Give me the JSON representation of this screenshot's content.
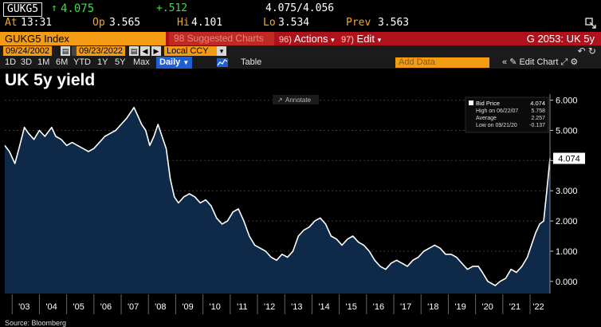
{
  "quote": {
    "ticker": "GUKG5",
    "last_price": "4.075",
    "change": "+.512",
    "bid_ask": "4.075/4.056",
    "at_label": "At",
    "at_value": "13:31",
    "open_label": "Op",
    "open_value": "3.565",
    "high_label": "Hi",
    "high_value": "4.101",
    "low_label": "Lo",
    "low_value": "3.534",
    "prev_label": "Prev",
    "prev_value": "3.563"
  },
  "command_bar": {
    "security": "GUKG5 Index",
    "suggested": "98 Suggested Charts",
    "actions_num": "96)",
    "actions_label": "Actions",
    "edit_num": "97)",
    "edit_label": "Edit",
    "right_title": "G 2053: UK 5y"
  },
  "date_bar": {
    "start_date": "09/24/2002",
    "end_date": "09/23/2022",
    "currency": "Local CCY"
  },
  "tabs": {
    "items": [
      "1D",
      "3D",
      "1M",
      "6M",
      "YTD",
      "1Y",
      "5Y",
      "Max"
    ],
    "frequency": "Daily",
    "table_label": "Table",
    "add_data_placeholder": "Add Data",
    "edit_chart_label": "Edit Chart"
  },
  "page_title": "UK 5y yield",
  "source": "Source: Bloomberg",
  "chart_data": {
    "type": "area",
    "title": "UK 5y yield",
    "annotate_label": "Annotate",
    "current_value_label": "4.074",
    "legend": {
      "series_name": "Bid Price",
      "series_value": "4.074",
      "high_label": "High on 06/22/07",
      "high_value": "5.758",
      "average_label": "Average",
      "average_value": "2.257",
      "low_label": "Low on 09/21/20",
      "low_value": "-0.137"
    },
    "ylim": [
      -0.4,
      6.2
    ],
    "yticks": [
      "6.000",
      "5.000",
      "4.000",
      "3.000",
      "2.000",
      "1.000",
      "0.000"
    ],
    "ytick_values": [
      6,
      5,
      4,
      3,
      2,
      1,
      0
    ],
    "xlim": [
      2002.73,
      2022.73
    ],
    "xticks": [
      "'03",
      "'04",
      "'05",
      "'06",
      "'07",
      "'08",
      "'09",
      "'10",
      "'11",
      "'12",
      "'13",
      "'14",
      "'15",
      "'16",
      "'17",
      "'18",
      "'19",
      "'20",
      "'21",
      "'22"
    ],
    "xtick_values": [
      2003,
      2004,
      2005,
      2006,
      2007,
      2008,
      2009,
      2010,
      2011,
      2012,
      2013,
      2014,
      2015,
      2016,
      2017,
      2018,
      2019,
      2020,
      2021,
      2022
    ],
    "series": [
      {
        "name": "Bid Price",
        "color": "#ffffff",
        "fill": "#0e2a48",
        "x": [
          2002.73,
          2002.9,
          2003.1,
          2003.25,
          2003.45,
          2003.6,
          2003.8,
          2004.0,
          2004.2,
          2004.45,
          2004.6,
          2004.8,
          2005.0,
          2005.2,
          2005.4,
          2005.6,
          2005.8,
          2006.0,
          2006.2,
          2006.4,
          2006.6,
          2006.8,
          2007.0,
          2007.2,
          2007.47,
          2007.6,
          2007.75,
          2007.9,
          2008.05,
          2008.2,
          2008.35,
          2008.5,
          2008.65,
          2008.8,
          2008.95,
          2009.1,
          2009.3,
          2009.5,
          2009.7,
          2009.9,
          2010.1,
          2010.3,
          2010.5,
          2010.7,
          2010.9,
          2011.1,
          2011.3,
          2011.5,
          2011.7,
          2011.9,
          2012.1,
          2012.3,
          2012.5,
          2012.7,
          2012.9,
          2013.1,
          2013.3,
          2013.5,
          2013.7,
          2013.9,
          2014.1,
          2014.3,
          2014.5,
          2014.7,
          2014.9,
          2015.1,
          2015.3,
          2015.5,
          2015.7,
          2015.9,
          2016.1,
          2016.3,
          2016.5,
          2016.7,
          2016.9,
          2017.1,
          2017.3,
          2017.5,
          2017.7,
          2017.9,
          2018.1,
          2018.3,
          2018.5,
          2018.7,
          2018.9,
          2019.1,
          2019.3,
          2019.5,
          2019.7,
          2019.9,
          2020.1,
          2020.25,
          2020.45,
          2020.72,
          2020.9,
          2021.1,
          2021.3,
          2021.5,
          2021.7,
          2021.9,
          2022.05,
          2022.2,
          2022.35,
          2022.5,
          2022.6,
          2022.67,
          2022.73
        ],
        "y": [
          4.5,
          4.3,
          3.9,
          4.4,
          5.1,
          4.9,
          4.7,
          5.0,
          4.8,
          5.1,
          4.8,
          4.7,
          4.5,
          4.6,
          4.5,
          4.4,
          4.3,
          4.4,
          4.6,
          4.8,
          4.9,
          5.0,
          5.2,
          5.4,
          5.76,
          5.5,
          5.2,
          5.0,
          4.5,
          4.8,
          5.2,
          4.8,
          4.4,
          3.4,
          2.8,
          2.6,
          2.8,
          2.9,
          2.8,
          2.6,
          2.7,
          2.5,
          2.1,
          1.9,
          2.0,
          2.3,
          2.4,
          2.0,
          1.5,
          1.2,
          1.1,
          1.0,
          0.8,
          0.7,
          0.9,
          0.8,
          1.0,
          1.5,
          1.7,
          1.8,
          2.0,
          2.1,
          1.9,
          1.5,
          1.4,
          1.2,
          1.4,
          1.5,
          1.3,
          1.2,
          1.0,
          0.7,
          0.5,
          0.4,
          0.6,
          0.7,
          0.6,
          0.5,
          0.7,
          0.8,
          1.0,
          1.1,
          1.2,
          1.1,
          0.9,
          0.9,
          0.8,
          0.6,
          0.4,
          0.5,
          0.5,
          0.3,
          0.0,
          -0.137,
          0.0,
          0.1,
          0.4,
          0.3,
          0.5,
          0.8,
          1.2,
          1.6,
          1.9,
          2.0,
          2.9,
          3.5,
          4.074
        ]
      }
    ]
  }
}
